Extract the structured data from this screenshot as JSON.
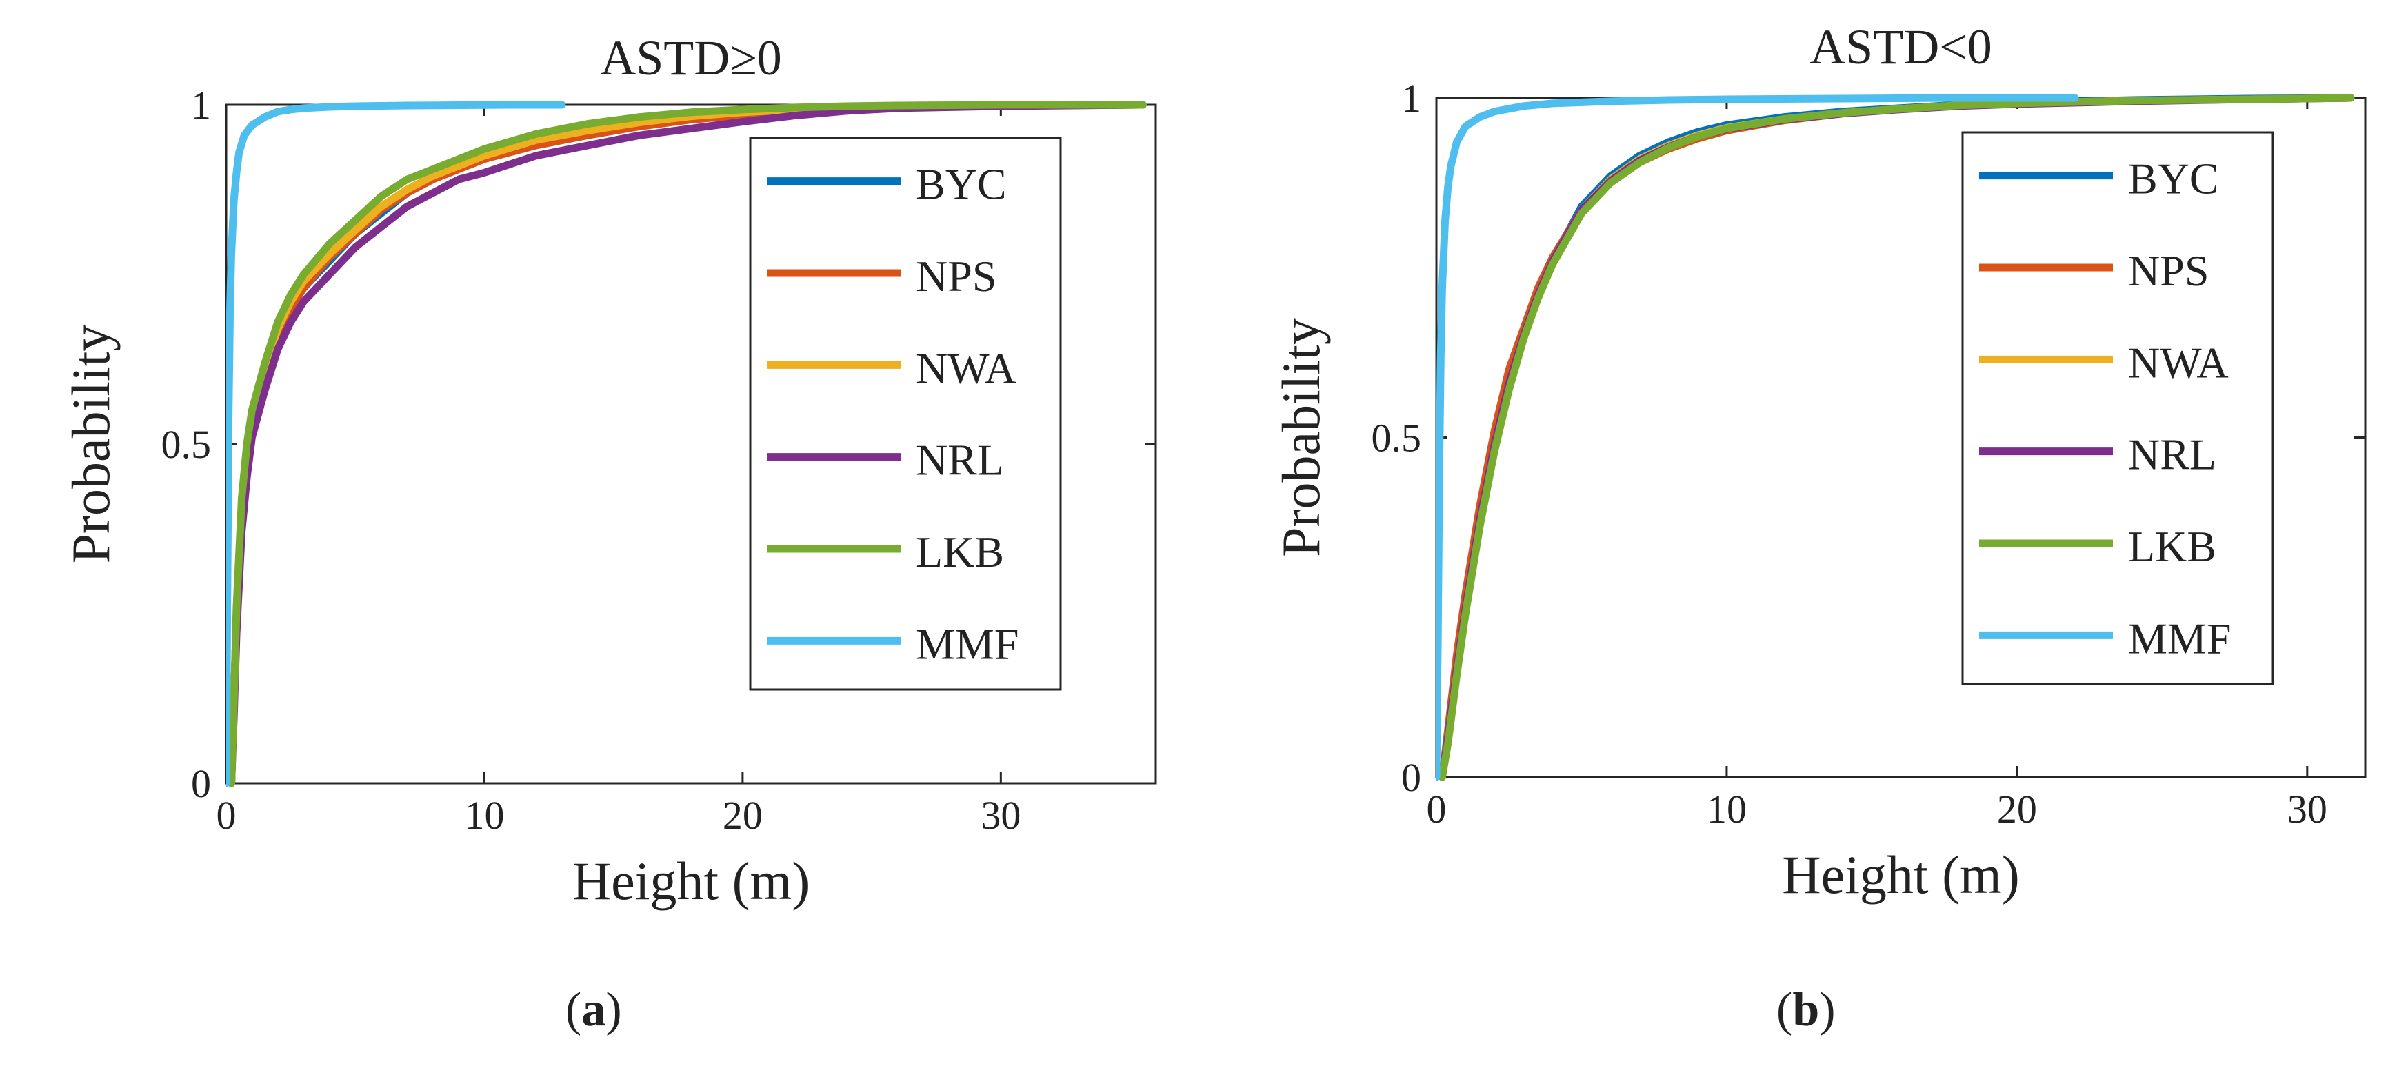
{
  "figure": {
    "panel_labels": [
      {
        "open": "(",
        "letter": "a",
        "close": ")"
      },
      {
        "open": "(",
        "letter": "b",
        "close": ")"
      }
    ]
  },
  "colors": {
    "BYC": "#0072BD",
    "NPS": "#D95319",
    "NWA": "#EDB120",
    "NRL": "#7E2F8E",
    "LKB": "#77AC30",
    "MMF": "#4DBEEE"
  },
  "chart_data": [
    {
      "type": "line",
      "title": "ASTD≥0",
      "xlabel": "Height (m)",
      "ylabel": "Probability",
      "xlim": [
        0,
        36
      ],
      "ylim": [
        0,
        1
      ],
      "xticks": [
        0,
        10,
        20,
        30
      ],
      "yticks": [
        0,
        0.5,
        1
      ],
      "ytick_labels": [
        "0",
        "0.5",
        "1"
      ],
      "legend": "top-right",
      "series": [
        {
          "name": "BYC",
          "x": [
            0.2,
            0.3,
            0.4,
            0.6,
            0.8,
            1.0,
            1.5,
            2,
            2.5,
            3,
            4,
            5,
            6,
            7,
            8,
            9,
            10,
            12,
            14,
            16,
            18,
            20,
            22,
            24,
            26,
            30,
            35.5
          ],
          "y": [
            0.0,
            0.12,
            0.25,
            0.4,
            0.48,
            0.53,
            0.6,
            0.66,
            0.7,
            0.73,
            0.77,
            0.81,
            0.84,
            0.87,
            0.89,
            0.91,
            0.925,
            0.945,
            0.96,
            0.97,
            0.98,
            0.985,
            0.99,
            0.994,
            0.997,
            0.999,
            1.0
          ]
        },
        {
          "name": "NPS",
          "x": [
            0.2,
            0.3,
            0.4,
            0.6,
            0.8,
            1.0,
            1.5,
            2,
            2.5,
            3,
            4,
            5,
            6,
            7,
            8,
            9,
            10,
            12,
            14,
            16,
            18,
            20,
            22,
            24,
            26,
            30,
            35.5
          ],
          "y": [
            0.0,
            0.12,
            0.25,
            0.4,
            0.48,
            0.53,
            0.6,
            0.66,
            0.7,
            0.73,
            0.775,
            0.81,
            0.845,
            0.87,
            0.89,
            0.905,
            0.92,
            0.94,
            0.955,
            0.968,
            0.978,
            0.985,
            0.99,
            0.994,
            0.997,
            0.999,
            1.0
          ]
        },
        {
          "name": "NWA",
          "x": [
            0.2,
            0.3,
            0.4,
            0.6,
            0.8,
            1.0,
            1.5,
            2,
            2.5,
            3,
            4,
            5,
            6,
            7,
            8,
            9,
            10,
            12,
            14,
            16,
            18,
            20,
            22,
            24,
            26,
            30,
            35.5
          ],
          "y": [
            0.0,
            0.12,
            0.25,
            0.41,
            0.49,
            0.54,
            0.61,
            0.67,
            0.71,
            0.74,
            0.78,
            0.815,
            0.85,
            0.875,
            0.895,
            0.91,
            0.925,
            0.948,
            0.962,
            0.974,
            0.983,
            0.989,
            0.993,
            0.996,
            0.998,
            0.999,
            1.0
          ]
        },
        {
          "name": "NRL",
          "x": [
            0.2,
            0.3,
            0.4,
            0.6,
            0.8,
            1.0,
            1.5,
            2,
            2.5,
            3,
            4,
            5,
            6,
            7,
            8,
            9,
            10,
            12,
            14,
            16,
            18,
            20,
            22,
            24,
            26,
            30,
            35.5
          ],
          "y": [
            0.0,
            0.1,
            0.22,
            0.37,
            0.45,
            0.51,
            0.58,
            0.64,
            0.68,
            0.71,
            0.75,
            0.79,
            0.82,
            0.85,
            0.87,
            0.89,
            0.9,
            0.925,
            0.94,
            0.955,
            0.965,
            0.975,
            0.984,
            0.991,
            0.995,
            0.998,
            1.0
          ]
        },
        {
          "name": "LKB",
          "x": [
            0.2,
            0.3,
            0.4,
            0.6,
            0.8,
            1.0,
            1.5,
            2,
            2.5,
            3,
            4,
            5,
            6,
            7,
            8,
            9,
            10,
            12,
            14,
            16,
            18,
            20,
            22,
            24,
            26,
            30,
            35.5
          ],
          "y": [
            0.0,
            0.12,
            0.26,
            0.42,
            0.5,
            0.55,
            0.62,
            0.68,
            0.72,
            0.75,
            0.795,
            0.83,
            0.865,
            0.89,
            0.905,
            0.92,
            0.935,
            0.957,
            0.972,
            0.982,
            0.989,
            0.993,
            0.996,
            0.998,
            0.999,
            1.0,
            1.0
          ]
        },
        {
          "name": "MMF",
          "x": [
            0.0,
            0.05,
            0.1,
            0.15,
            0.2,
            0.3,
            0.4,
            0.5,
            0.7,
            1.0,
            1.5,
            2,
            2.5,
            3,
            4,
            5,
            7,
            9,
            11,
            13
          ],
          "y": [
            0.0,
            0.3,
            0.55,
            0.7,
            0.78,
            0.86,
            0.9,
            0.93,
            0.955,
            0.97,
            0.982,
            0.99,
            0.993,
            0.995,
            0.997,
            0.998,
            0.999,
            0.9995,
            1.0,
            1.0
          ]
        }
      ]
    },
    {
      "type": "line",
      "title": "ASTD<0",
      "xlabel": "Height (m)",
      "ylabel": "Probability",
      "xlim": [
        0,
        32
      ],
      "ylim": [
        0,
        1
      ],
      "xticks": [
        0,
        10,
        20,
        30
      ],
      "yticks": [
        0,
        0.5,
        1
      ],
      "ytick_labels": [
        "0",
        "0.5",
        "1"
      ],
      "legend": "top-right",
      "series": [
        {
          "name": "BYC",
          "x": [
            0.2,
            0.4,
            0.7,
            1.0,
            1.5,
            2,
            2.5,
            3,
            3.5,
            4,
            5,
            6,
            7,
            8,
            9,
            10,
            12,
            14,
            16,
            18,
            20,
            24,
            28,
            31.5
          ],
          "y": [
            0.0,
            0.06,
            0.16,
            0.25,
            0.38,
            0.49,
            0.58,
            0.65,
            0.71,
            0.76,
            0.84,
            0.885,
            0.915,
            0.935,
            0.95,
            0.96,
            0.972,
            0.98,
            0.985,
            0.99,
            0.993,
            0.997,
            0.999,
            1.0
          ]
        },
        {
          "name": "NPS",
          "x": [
            0.2,
            0.4,
            0.7,
            1.0,
            1.5,
            2,
            2.5,
            3,
            3.5,
            4,
            5,
            6,
            7,
            8,
            9,
            10,
            12,
            14,
            16,
            18,
            20,
            24,
            28,
            31.5
          ],
          "y": [
            0.0,
            0.07,
            0.18,
            0.27,
            0.4,
            0.51,
            0.6,
            0.66,
            0.72,
            0.765,
            0.835,
            0.875,
            0.905,
            0.925,
            0.94,
            0.952,
            0.967,
            0.977,
            0.984,
            0.989,
            0.992,
            0.996,
            0.998,
            1.0
          ]
        },
        {
          "name": "NWA",
          "x": [
            0.2,
            0.4,
            0.7,
            1.0,
            1.5,
            2,
            2.5,
            3,
            3.5,
            4,
            5,
            6,
            7,
            8,
            9,
            10,
            12,
            14,
            16,
            18,
            20,
            24,
            28,
            31.5
          ],
          "y": [
            0.0,
            0.06,
            0.16,
            0.25,
            0.38,
            0.49,
            0.58,
            0.65,
            0.71,
            0.76,
            0.835,
            0.88,
            0.91,
            0.93,
            0.945,
            0.956,
            0.969,
            0.978,
            0.984,
            0.989,
            0.992,
            0.996,
            0.998,
            1.0
          ]
        },
        {
          "name": "NRL",
          "x": [
            0.2,
            0.4,
            0.7,
            1.0,
            1.5,
            2,
            2.5,
            3,
            3.5,
            4,
            5,
            6,
            7,
            8,
            9,
            10,
            12,
            14,
            16,
            18,
            20,
            24,
            28,
            31.5
          ],
          "y": [
            0.0,
            0.06,
            0.16,
            0.25,
            0.38,
            0.49,
            0.58,
            0.65,
            0.71,
            0.76,
            0.835,
            0.878,
            0.908,
            0.928,
            0.943,
            0.954,
            0.968,
            0.977,
            0.983,
            0.988,
            0.991,
            0.995,
            0.998,
            1.0
          ]
        },
        {
          "name": "LKB",
          "x": [
            0.2,
            0.4,
            0.7,
            1.0,
            1.5,
            2,
            2.5,
            3,
            3.5,
            4,
            5,
            6,
            7,
            8,
            9,
            10,
            12,
            14,
            16,
            18,
            20,
            24,
            28,
            31.5
          ],
          "y": [
            0.0,
            0.05,
            0.15,
            0.24,
            0.37,
            0.48,
            0.57,
            0.645,
            0.705,
            0.755,
            0.83,
            0.875,
            0.905,
            0.927,
            0.943,
            0.955,
            0.969,
            0.978,
            0.984,
            0.989,
            0.992,
            0.996,
            0.998,
            1.0
          ]
        },
        {
          "name": "MMF",
          "x": [
            0.0,
            0.05,
            0.1,
            0.15,
            0.2,
            0.3,
            0.4,
            0.5,
            0.7,
            1.0,
            1.5,
            2,
            3,
            4,
            6,
            8,
            10,
            14,
            18,
            22
          ],
          "y": [
            0.0,
            0.2,
            0.45,
            0.62,
            0.72,
            0.82,
            0.87,
            0.9,
            0.935,
            0.958,
            0.972,
            0.98,
            0.988,
            0.992,
            0.995,
            0.997,
            0.998,
            0.999,
            1.0,
            1.0
          ]
        }
      ]
    }
  ]
}
